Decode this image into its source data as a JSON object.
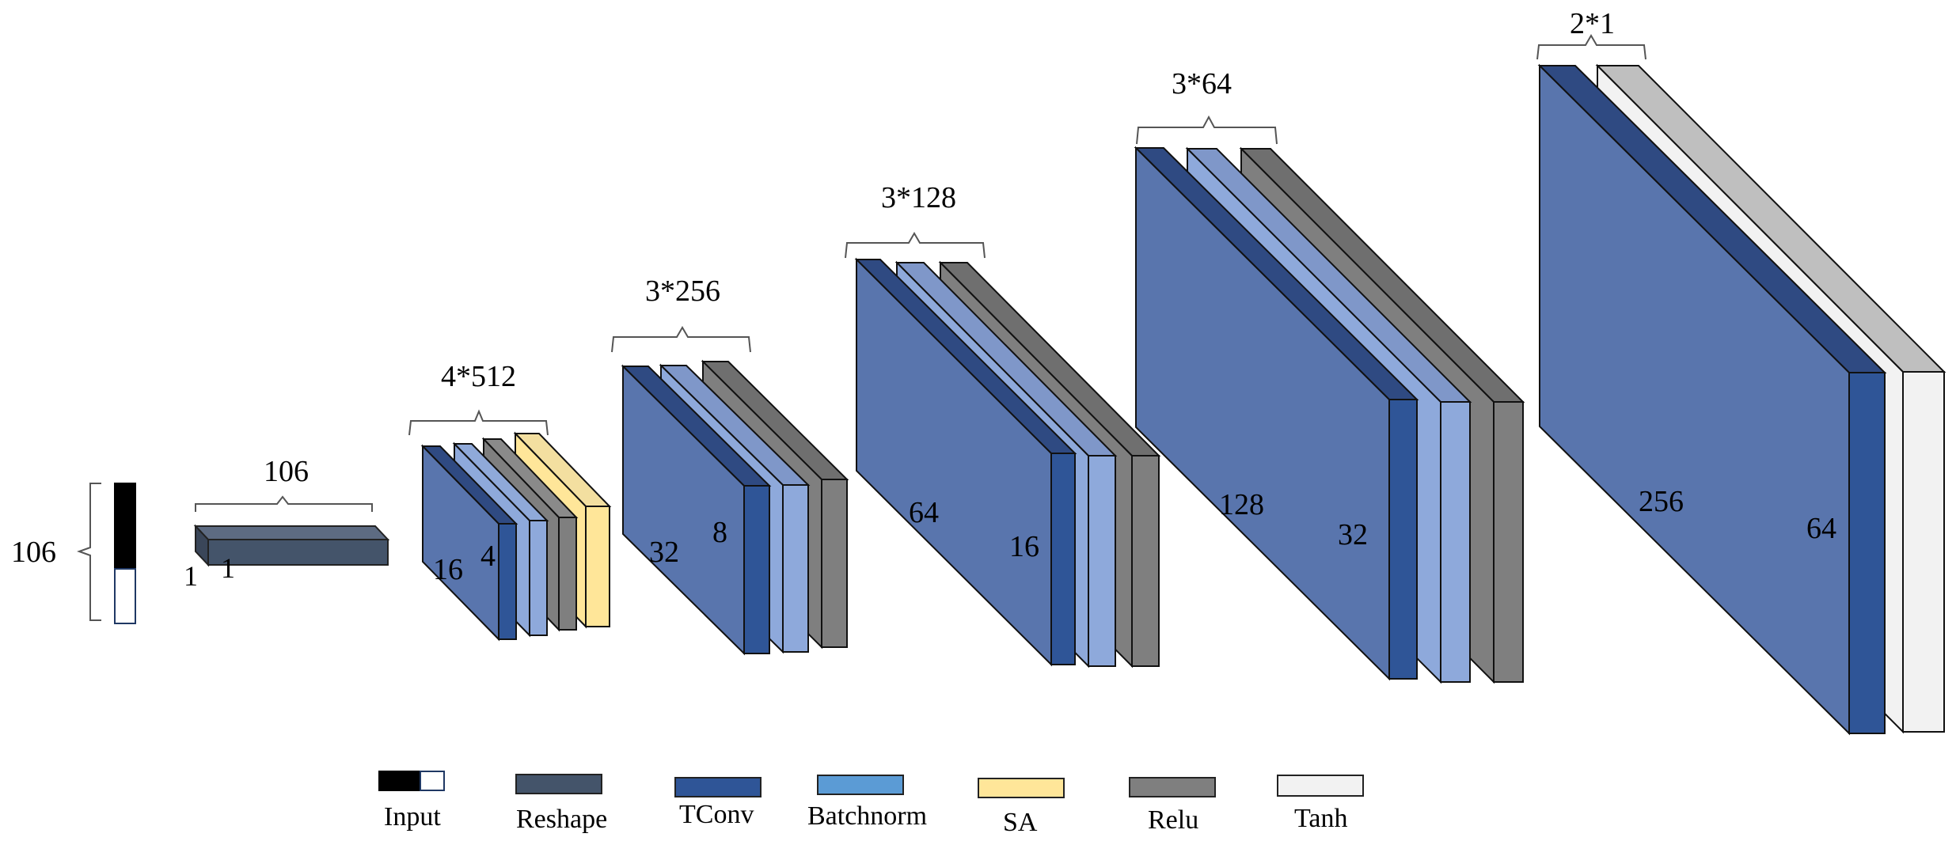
{
  "input": {
    "label": "106"
  },
  "reshape": {
    "top_label": "106",
    "side_label_a": "1",
    "side_label_b": "1"
  },
  "blocks": [
    {
      "group_label": "4*512",
      "size_label": "16",
      "depth_label": "4"
    },
    {
      "group_label": "3*256",
      "size_label": "32",
      "depth_label": "8"
    },
    {
      "group_label": "3*128",
      "size_label": "64",
      "depth_label": "16"
    },
    {
      "group_label": "3*64",
      "size_label": "128",
      "depth_label": "32"
    },
    {
      "group_label": "2*1",
      "size_label": "256",
      "depth_label": "64"
    }
  ],
  "legend": [
    {
      "label": "Input",
      "color": "#000000"
    },
    {
      "label": "Reshape",
      "color": "#44546a"
    },
    {
      "label": "TConv",
      "color": "#2f5597"
    },
    {
      "label": "Batchnorm",
      "color": "#5b9bd5"
    },
    {
      "label": "SA",
      "color": "#ffe699"
    },
    {
      "label": "Relu",
      "color": "#7f7f7f"
    },
    {
      "label": "Tanh",
      "color": "#f2f2f2"
    }
  ]
}
